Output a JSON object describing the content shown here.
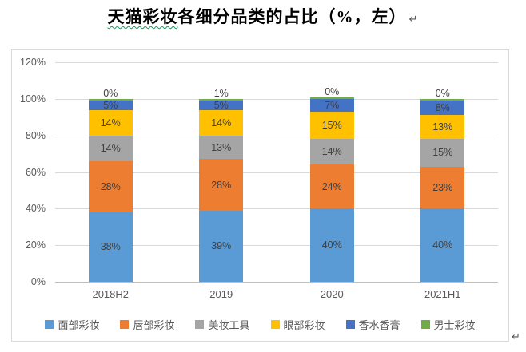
{
  "page": {
    "title": {
      "underlined": "天猫彩妆",
      "rest": "各细分品类的占比（%，左）",
      "paragraph_mark": "↵"
    },
    "trailing_paragraph_mark": "↵"
  },
  "chart_data": {
    "type": "bar",
    "stacked": true,
    "title": "天猫彩妆各细分品类的占比（%，左）",
    "categories": [
      "2018H2",
      "2019",
      "2020",
      "2021H1"
    ],
    "series": [
      {
        "name": "面部彩妆",
        "color": "#5B9BD5",
        "values": [
          38,
          39,
          40,
          40
        ],
        "labels": [
          "38%",
          "39%",
          "40%",
          "40%"
        ]
      },
      {
        "name": "唇部彩妆",
        "color": "#ED7D31",
        "values": [
          28,
          28,
          24,
          23
        ],
        "labels": [
          "28%",
          "28%",
          "24%",
          "23%"
        ]
      },
      {
        "name": "美妆工具",
        "color": "#A5A5A5",
        "values": [
          14,
          13,
          14,
          15
        ],
        "labels": [
          "14%",
          "13%",
          "14%",
          "15%"
        ]
      },
      {
        "name": "眼部彩妆",
        "color": "#FFC000",
        "values": [
          14,
          14,
          15,
          13
        ],
        "labels": [
          "14%",
          "14%",
          "15%",
          "13%"
        ]
      },
      {
        "name": "香水香膏",
        "color": "#4472C4",
        "values": [
          5,
          5,
          7,
          8
        ],
        "labels": [
          "5%",
          "5%",
          "7%",
          "8%"
        ]
      },
      {
        "name": "男士彩妆",
        "color": "#70AD47",
        "values": [
          0,
          1,
          0,
          0
        ],
        "labels": [
          "0%",
          "1%",
          "0%",
          "0%"
        ]
      }
    ],
    "y_axis": {
      "ticks": [
        "0%",
        "20%",
        "40%",
        "60%",
        "80%",
        "100%",
        "120%"
      ],
      "min": 0,
      "max": 120,
      "step": 20
    },
    "xlabel": "",
    "ylabel": "",
    "grid": true,
    "legend_position": "bottom"
  },
  "colors": {
    "title_text": "#000000",
    "squiggle": "#00A650",
    "pmark": "#595959",
    "box_border": "#D9D9D9",
    "grid": "#D9D9D9",
    "axis_line": "#BFBFBF",
    "text_muted": "#595959",
    "data_label": "#404040"
  }
}
